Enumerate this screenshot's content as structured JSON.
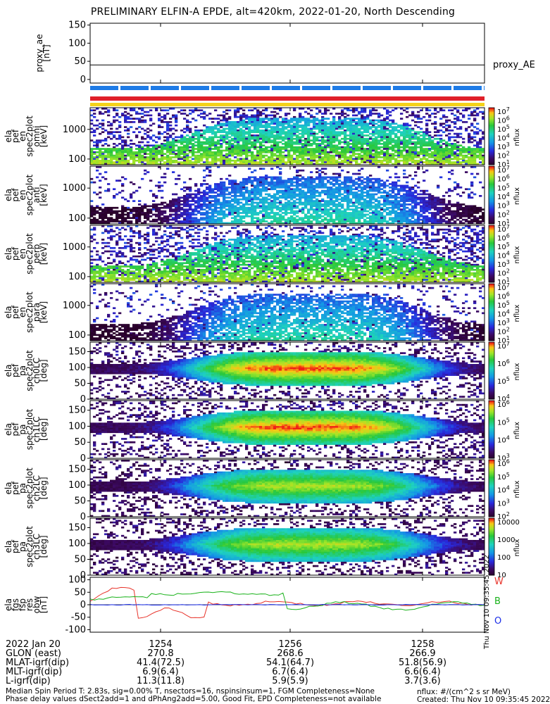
{
  "chart_data": {
    "title": "PRELIMINARY ELFIN-A EPDE, alt=420km, 2022-01-20, North Descending",
    "x_ticks": [
      "1254",
      "1256",
      "1258"
    ],
    "panels": [
      {
        "id": "proxy_ae",
        "type": "line",
        "ylabel": [
          "proxy_ae",
          "[nT]"
        ],
        "yticks": [
          "150",
          "100",
          "50",
          "0"
        ],
        "ylim": [
          -10,
          155
        ],
        "series": [
          {
            "name": "proxy_AE",
            "value": 40
          }
        ],
        "legend": "proxy_AE"
      },
      {
        "id": "spec1",
        "type": "heatmap",
        "ylabel": [
          "ela",
          "pef",
          "en",
          "spec2plot",
          "omni",
          "[keV]"
        ],
        "yticks": [
          "1000",
          "100"
        ],
        "cbar_ticks": [
          "10^7",
          "10^6",
          "10^5",
          "10^4",
          "10^3",
          "10^2",
          "10^1"
        ],
        "cbar_label": "nflux",
        "intensity": "high"
      },
      {
        "id": "spec2",
        "type": "heatmap",
        "ylabel": [
          "ela",
          "pef",
          "en",
          "spec2plot",
          "anti",
          "[keV]"
        ],
        "yticks": [
          "1000",
          "100"
        ],
        "cbar_ticks": [
          "10^7",
          "10^6",
          "10^5",
          "10^4",
          "10^3",
          "10^2",
          "10^1"
        ],
        "cbar_label": "nflux",
        "intensity": "low"
      },
      {
        "id": "spec3",
        "type": "heatmap",
        "ylabel": [
          "ela",
          "pef",
          "en",
          "spec2plot",
          "perp",
          "[keV]"
        ],
        "yticks": [
          "1000",
          "100"
        ],
        "cbar_ticks": [
          "10^7",
          "10^6",
          "10^5",
          "10^4",
          "10^3",
          "10^2",
          "10^1"
        ],
        "cbar_label": "nflux",
        "intensity": "high"
      },
      {
        "id": "spec4",
        "type": "heatmap",
        "ylabel": [
          "ela",
          "pef",
          "en",
          "spec2plot",
          "para",
          "[keV]"
        ],
        "yticks": [
          "1000",
          "100"
        ],
        "cbar_ticks": [
          "10^7",
          "10^6",
          "10^5",
          "10^4",
          "10^3",
          "10^2",
          "10^1"
        ],
        "cbar_label": "nflux",
        "intensity": "low"
      },
      {
        "id": "pa0",
        "type": "heatmap",
        "ylabel": [
          "ela",
          "pef",
          "pa",
          "spec2plot",
          "ch0LC",
          "[deg]"
        ],
        "yticks": [
          "150",
          "100",
          "50",
          "0"
        ],
        "cbar_ticks": [
          "10^7",
          "10^6",
          "10^5",
          "10^4"
        ],
        "cbar_label": "nflux",
        "intensity": "high"
      },
      {
        "id": "pa1",
        "type": "heatmap",
        "ylabel": [
          "ela",
          "pef",
          "pa",
          "spec2plot",
          "ch1LC",
          "[deg]"
        ],
        "yticks": [
          "150",
          "100",
          "50",
          "0"
        ],
        "cbar_ticks": [
          "10^6",
          "10^5",
          "10^4",
          "10^3"
        ],
        "cbar_label": "nflux",
        "intensity": "high"
      },
      {
        "id": "pa2",
        "type": "heatmap",
        "ylabel": [
          "ela",
          "pef",
          "pa",
          "spec2plot",
          "ch2LC",
          "[deg]"
        ],
        "yticks": [
          "150",
          "100",
          "50",
          "0"
        ],
        "cbar_ticks": [
          "10^6",
          "10^5",
          "10^4",
          "10^3",
          "10^2"
        ],
        "cbar_label": "nflux",
        "intensity": "medium"
      },
      {
        "id": "pa3",
        "type": "heatmap",
        "ylabel": [
          "ela",
          "pef",
          "pa",
          "spec2plot",
          "ch3LC",
          "[deg]"
        ],
        "yticks": [
          "150",
          "100",
          "50",
          "0"
        ],
        "cbar_ticks": [
          "10000",
          "1000",
          "100",
          "10"
        ],
        "cbar_label": "nflux",
        "intensity": "medium"
      },
      {
        "id": "fgs",
        "type": "line",
        "ylabel": [
          "ela",
          "fgs",
          "fsp",
          "res",
          "obw",
          "[nT]"
        ],
        "yticks": [
          "100",
          "50",
          "0",
          "-50",
          "-100"
        ],
        "ylim": [
          -110,
          110
        ],
        "series": [
          {
            "name": "W",
            "color": "#e8332a"
          },
          {
            "name": "B",
            "color": "#19b21a"
          },
          {
            "name": "O",
            "color": "#1a2de8"
          }
        ]
      }
    ]
  },
  "footer": {
    "date": "2022 Jan 20",
    "rows": [
      {
        "label": "GLON (east)",
        "values": [
          "270.8",
          "268.6",
          "266.9"
        ]
      },
      {
        "label": "MLAT-igrf(dip)",
        "values": [
          "41.4(72.5)",
          "54.1(64.7)",
          "51.8(56.9)"
        ]
      },
      {
        "label": "MLT-igrf(dip)",
        "values": [
          "6.9(6.4)",
          "6.7(6.4)",
          "6.6(6.4)"
        ]
      },
      {
        "label": "L-igrf(dip)",
        "values": [
          "11.3(11.8)",
          "5.9(5.9)",
          "3.7(3.6)"
        ]
      }
    ],
    "note1": "Median Spin Period T: 2.83s, sig=0.00% T, nsectors=16, nspinsinsum=1, FGM Completeness=None",
    "note2": "Phase delay values dSect2add=1 and dPhAng2add=5.00, Good Fit, EPD Completeness=not available",
    "units": "nflux: #/(cm^2 s sr MeV)",
    "created": "Created: Thu Nov 10 09:35:45 2022",
    "side_stamp": "Thu Nov 10 09:35:45 2022"
  },
  "colors": {
    "bar_blue": "#1e7be6",
    "bar_red": "#e0202a",
    "bar_yellow": "#f4d21a"
  }
}
